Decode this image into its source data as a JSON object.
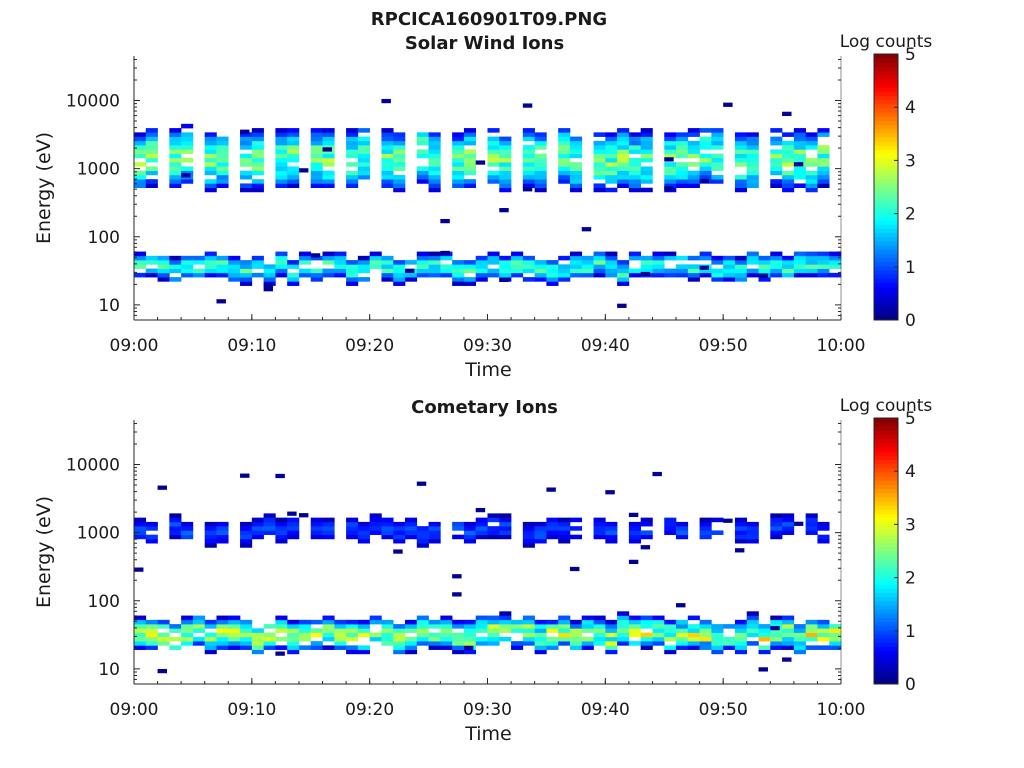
{
  "figure_title": "RPCICA160901T09.PNG",
  "chart_data": [
    {
      "type": "heatmap",
      "title": "Solar Wind Ions",
      "xlabel": "Time",
      "ylabel": "Energy (eV)",
      "x_ticks": [
        "09:00",
        "09:10",
        "09:20",
        "09:30",
        "09:40",
        "09:50",
        "10:00"
      ],
      "y_ticks": [
        "10",
        "100",
        "1000",
        "10000"
      ],
      "y_scale": "log",
      "ylim": [
        6,
        45000
      ],
      "xlim": [
        "09:00",
        "10:00"
      ],
      "colorbar": {
        "label": "Log counts",
        "ticks": [
          "0",
          "1",
          "2",
          "3",
          "4",
          "5"
        ],
        "range": [
          0,
          5
        ],
        "colormap": "jet"
      },
      "bands": [
        {
          "name": "high-energy band",
          "energy_range": [
            500,
            3500
          ],
          "peak_log_counts": 2.5
        },
        {
          "name": "low-energy band",
          "energy_range": [
            22,
            50
          ],
          "peak_log_counts": 2.2
        }
      ]
    },
    {
      "type": "heatmap",
      "title": "Cometary Ions",
      "xlabel": "Time",
      "ylabel": "Energy (eV)",
      "x_ticks": [
        "09:00",
        "09:10",
        "09:20",
        "09:30",
        "09:40",
        "09:50",
        "10:00"
      ],
      "y_ticks": [
        "10",
        "100",
        "1000",
        "10000"
      ],
      "y_scale": "log",
      "ylim": [
        6,
        45000
      ],
      "xlim": [
        "09:00",
        "10:00"
      ],
      "colorbar": {
        "label": "Log counts",
        "ticks": [
          "0",
          "1",
          "2",
          "3",
          "4",
          "5"
        ],
        "range": [
          0,
          5
        ],
        "colormap": "jet"
      },
      "bands": [
        {
          "name": "high-energy band",
          "energy_range": [
            700,
            1500
          ],
          "peak_log_counts": 1.0
        },
        {
          "name": "low-energy band",
          "energy_range": [
            18,
            50
          ],
          "peak_log_counts": 2.8
        }
      ]
    }
  ]
}
